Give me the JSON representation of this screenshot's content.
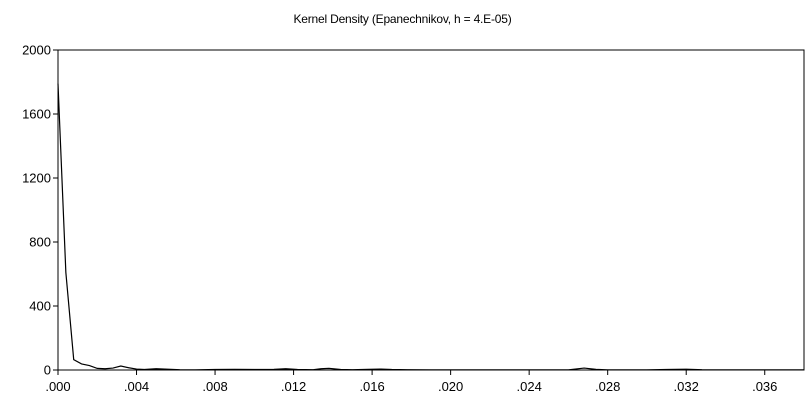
{
  "chart_data": {
    "type": "line",
    "title": "Kernel Density (Epanechnikov, h = 4.E-05)",
    "xlabel": "",
    "ylabel": "",
    "xlim": [
      0,
      0.038
    ],
    "ylim": [
      0,
      2000
    ],
    "grid": false,
    "legend": "none",
    "x_ticks": [
      {
        "value": 0.0,
        "label": ".000"
      },
      {
        "value": 0.004,
        "label": ".004"
      },
      {
        "value": 0.008,
        "label": ".008"
      },
      {
        "value": 0.012,
        "label": ".012"
      },
      {
        "value": 0.016,
        "label": ".016"
      },
      {
        "value": 0.02,
        "label": ".020"
      },
      {
        "value": 0.024,
        "label": ".024"
      },
      {
        "value": 0.028,
        "label": ".028"
      },
      {
        "value": 0.032,
        "label": ".032"
      },
      {
        "value": 0.036,
        "label": ".036"
      }
    ],
    "y_ticks": [
      {
        "value": 0,
        "label": "0"
      },
      {
        "value": 400,
        "label": "400"
      },
      {
        "value": 800,
        "label": "800"
      },
      {
        "value": 1200,
        "label": "1200"
      },
      {
        "value": 1600,
        "label": "1600"
      },
      {
        "value": 2000,
        "label": "2000"
      }
    ],
    "line_color": "#000000",
    "series": [
      {
        "x": [
          0.0,
          0.0004,
          0.0008,
          0.0012,
          0.0016,
          0.002,
          0.0024,
          0.0028,
          0.0032,
          0.0036,
          0.004,
          0.0044,
          0.005,
          0.0056,
          0.0062,
          0.007,
          0.008,
          0.009,
          0.01,
          0.011,
          0.0116,
          0.0122,
          0.013,
          0.0134,
          0.0138,
          0.0144,
          0.015,
          0.0158,
          0.0164,
          0.017,
          0.0178,
          0.019,
          0.02,
          0.022,
          0.024,
          0.026,
          0.0268,
          0.0274,
          0.028,
          0.03,
          0.031,
          0.032,
          0.0328,
          0.034,
          0.036,
          0.038
        ],
        "y": [
          1790,
          610,
          65,
          38,
          28,
          10,
          8,
          12,
          25,
          14,
          6,
          3,
          8,
          5,
          2,
          1,
          3,
          4,
          3,
          4,
          8,
          3,
          2,
          8,
          10,
          3,
          2,
          4,
          6,
          3,
          2,
          1,
          1,
          1,
          1,
          1,
          12,
          4,
          1,
          1,
          3,
          5,
          2,
          1,
          1,
          1
        ]
      }
    ]
  }
}
